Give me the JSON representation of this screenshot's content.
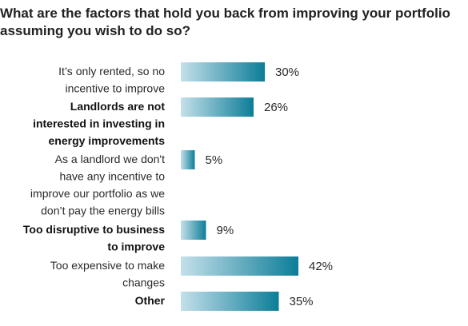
{
  "chart_data": {
    "type": "bar",
    "orientation": "horizontal",
    "title_lines": [
      "What are the factors that hold you back from improving your portfolio",
      "assuming you wish to do so?"
    ],
    "categories": [
      {
        "lines": [
          "It’s only rented, so no",
          "incentive to improve"
        ],
        "bold": false
      },
      {
        "lines": [
          "Landlords are not",
          "interested in investing in",
          "energy improvements"
        ],
        "bold": true
      },
      {
        "lines": [
          "As a landlord we don't",
          "have any incentive to",
          "improve our portfolio as we",
          "don’t pay the energy bills"
        ],
        "bold": false
      },
      {
        "lines": [
          "Too disruptive to business",
          "to improve"
        ],
        "bold": true
      },
      {
        "lines": [
          "Too expensive to make",
          "changes"
        ],
        "bold": false
      },
      {
        "lines": [
          "Other"
        ],
        "bold": true
      }
    ],
    "values": [
      30,
      26,
      5,
      9,
      42,
      35
    ],
    "value_labels": [
      "30%",
      "26%",
      "5%",
      "9%",
      "42%",
      "35%"
    ],
    "unit": "%",
    "xlim": [
      0,
      100
    ],
    "grid": false,
    "legend": "none",
    "colors": {
      "bar_start": "#c4e0ea",
      "bar_end": "#0c7d98"
    }
  }
}
